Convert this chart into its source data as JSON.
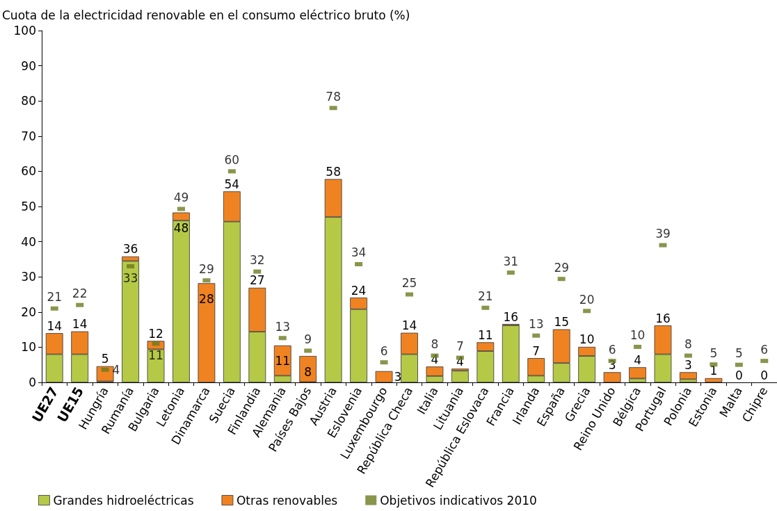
{
  "chart_data": {
    "type": "bar",
    "stacked": true,
    "ylabel": "Cuota de la electricidad renovable en el consumo eléctrico bruto (%)",
    "categories": [
      "UE27",
      "UE15",
      "Hungría",
      "Rumanía",
      "Bulgaria",
      "Letonia",
      "Dinamarca",
      "Suecia",
      "Finlandia",
      "Alemania",
      "Países Bajos",
      "Austria",
      "Eslovenia",
      "Luxembourgo",
      "República Checa",
      "Italia",
      "Lituania",
      "República Eslovaca",
      "Francia",
      "Irlanda",
      "España",
      "Grecia",
      "Reino Unido",
      "Bélgica",
      "Portugal",
      "Polonia",
      "Estonia",
      "Malta",
      "Chipre"
    ],
    "series": [
      {
        "name": "Grandes hidroeléctricas",
        "color": "#b5c947",
        "values": [
          8,
          8,
          0.3,
          34.5,
          9.4,
          46,
          0,
          45.7,
          14.4,
          1.9,
          0.1,
          47,
          20.8,
          0,
          8,
          1.8,
          3.3,
          8.9,
          16.2,
          1.9,
          5.5,
          7.5,
          0,
          1.1,
          8,
          0.9,
          0,
          0,
          0
        ]
      },
      {
        "name": "Otras renovables",
        "color": "#f08321",
        "values": [
          6,
          6.5,
          4.3,
          1.3,
          2.4,
          2.3,
          28.2,
          8.6,
          12.5,
          8.6,
          7.4,
          10.8,
          3.3,
          3.2,
          6.1,
          2.7,
          0.6,
          2.5,
          0.4,
          5,
          9.6,
          2.6,
          2.9,
          3.2,
          8.2,
          2,
          1.2,
          0,
          0
        ]
      },
      {
        "name": "Objetivos indicativos 2010",
        "type": "scatter",
        "color": "#6b7a1f",
        "values": [
          21,
          22,
          3.6,
          33,
          11,
          49.3,
          29,
          60,
          31.5,
          12.6,
          9,
          78,
          33.6,
          5.7,
          25,
          7.6,
          7,
          21.2,
          31.2,
          13.3,
          29.4,
          20.3,
          6.1,
          10.1,
          39,
          7.6,
          5.1,
          5,
          6.1
        ],
        "value_labels": [
          "21",
          "22",
          "4",
          "33",
          "11",
          "49",
          "29",
          "60",
          "32",
          "13",
          "9",
          "78",
          "34",
          "6",
          "25",
          "8",
          "7",
          "21",
          "31",
          "13",
          "29",
          "20",
          "6",
          "10",
          "39",
          "8",
          "5",
          "5",
          "6"
        ]
      }
    ],
    "totals": [
      "14",
      "14",
      "5",
      "36",
      "12",
      "48",
      "28",
      "54",
      "27",
      "11",
      "8",
      "58",
      "24",
      "3",
      "14",
      "4",
      "4",
      "11",
      "16",
      "7",
      "15",
      "10",
      "3",
      "4",
      "16",
      "3",
      "1",
      "0",
      "0"
    ],
    "ylim": [
      0,
      100
    ],
    "yticks": [
      0,
      10,
      20,
      30,
      40,
      50,
      60,
      70,
      80,
      90,
      100
    ],
    "grid": false,
    "legend": "bottom"
  }
}
